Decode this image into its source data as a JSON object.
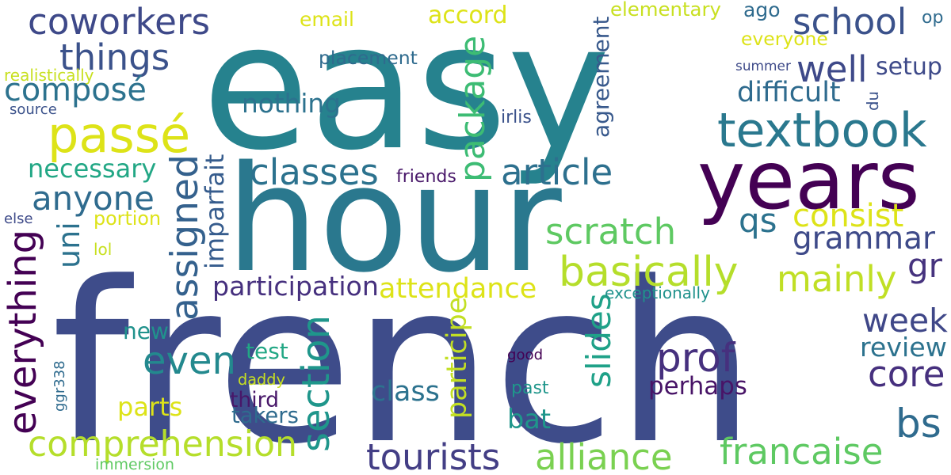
{
  "words": [
    {
      "text": "easy",
      "color": "#26828e"
    },
    {
      "text": "french",
      "color": "#3e4c8a"
    },
    {
      "text": "hour",
      "color": "#2a788e"
    },
    {
      "text": "years",
      "color": "#440154"
    },
    {
      "text": "textbook",
      "color": "#2a788e"
    },
    {
      "text": "passé",
      "color": "#dde318"
    },
    {
      "text": "coworkers",
      "color": "#3e4989"
    },
    {
      "text": "things",
      "color": "#3b528b"
    },
    {
      "text": "composé",
      "color": "#2c728e"
    },
    {
      "text": "school",
      "color": "#3b528b"
    },
    {
      "text": "well",
      "color": "#3e4989"
    },
    {
      "text": "package",
      "color": "#3dbc74"
    },
    {
      "text": "classes",
      "color": "#2c728e"
    },
    {
      "text": "article",
      "color": "#2d708e"
    },
    {
      "text": "anyone",
      "color": "#2f6b8e"
    },
    {
      "text": "necessary",
      "color": "#22a785"
    },
    {
      "text": "assigned",
      "color": "#34618d"
    },
    {
      "text": "imparfait",
      "color": "#365c8d"
    },
    {
      "text": "consist",
      "color": "#dde318"
    },
    {
      "text": "qs",
      "color": "#2c728e"
    },
    {
      "text": "grammar",
      "color": "#3e4a89"
    },
    {
      "text": "scratch",
      "color": "#5ec962"
    },
    {
      "text": "uni",
      "color": "#2c728e"
    },
    {
      "text": "everything",
      "color": "#440154"
    },
    {
      "text": "gr",
      "color": "#46337e"
    },
    {
      "text": "mainly",
      "color": "#c0df25"
    },
    {
      "text": "basically",
      "color": "#b5de2b"
    },
    {
      "text": "participation",
      "color": "#46307e"
    },
    {
      "text": "attendance",
      "color": "#dde318"
    },
    {
      "text": "week",
      "color": "#3f4788"
    },
    {
      "text": "even",
      "color": "#23898e"
    },
    {
      "text": "prof",
      "color": "#46307e"
    },
    {
      "text": "section",
      "color": "#1f968b"
    },
    {
      "text": "slides",
      "color": "#1fa188"
    },
    {
      "text": "core",
      "color": "#46307e"
    },
    {
      "text": "review",
      "color": "#2c728e"
    },
    {
      "text": "comprehension",
      "color": "#b5de2b"
    },
    {
      "text": "tourists",
      "color": "#433e85"
    },
    {
      "text": "alliance",
      "color": "#7ad151"
    },
    {
      "text": "francaise",
      "color": "#5ec962"
    },
    {
      "text": "bs",
      "color": "#2f6b8e"
    },
    {
      "text": "class",
      "color": "#2c728e"
    },
    {
      "text": "perhaps",
      "color": "#481467"
    },
    {
      "text": "bat",
      "color": "#1f968b"
    },
    {
      "text": "participe",
      "color": "#c2df23"
    },
    {
      "text": "third",
      "color": "#481769"
    },
    {
      "text": "test",
      "color": "#22a785"
    },
    {
      "text": "takers",
      "color": "#2f6b8e"
    },
    {
      "text": "parts",
      "color": "#dde318"
    },
    {
      "text": "new",
      "color": "#20928c"
    },
    {
      "text": "portion",
      "color": "#dde318"
    },
    {
      "text": "nothing",
      "color": "#2c728e"
    },
    {
      "text": "difficult",
      "color": "#2f6b8e"
    },
    {
      "text": "agreement",
      "color": "#38598c"
    },
    {
      "text": "setup",
      "color": "#3e4a89"
    },
    {
      "text": "du",
      "color": "#3b528b"
    },
    {
      "text": "accord",
      "color": "#dde318"
    },
    {
      "text": "email",
      "color": "#dde318"
    },
    {
      "text": "placement",
      "color": "#2f6b8e"
    },
    {
      "text": "elementary",
      "color": "#c8e020"
    },
    {
      "text": "ago",
      "color": "#2f6b8e"
    },
    {
      "text": "everyone",
      "color": "#dde318"
    },
    {
      "text": "summer",
      "color": "#3e4a89"
    },
    {
      "text": "op",
      "color": "#2f6b8e"
    },
    {
      "text": "realistically",
      "color": "#c8e020"
    },
    {
      "text": "source",
      "color": "#3b528b"
    },
    {
      "text": "irlis",
      "color": "#3b528b"
    },
    {
      "text": "friends",
      "color": "#481769"
    },
    {
      "text": "else",
      "color": "#3e4a89"
    },
    {
      "text": "lol",
      "color": "#c8e020"
    },
    {
      "text": "exceptionally",
      "color": "#20928c"
    },
    {
      "text": "good",
      "color": "#440154"
    },
    {
      "text": "past",
      "color": "#1f968b"
    },
    {
      "text": "daddy",
      "color": "#c8e020"
    },
    {
      "text": "ggr338",
      "color": "#2f6b8e"
    },
    {
      "text": "immersion",
      "color": "#5ec962"
    }
  ]
}
